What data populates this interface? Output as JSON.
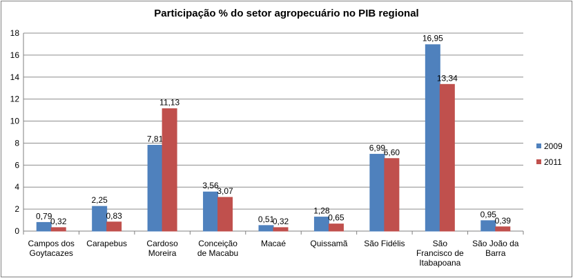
{
  "chart_data": {
    "type": "bar",
    "title": "Participação % do setor agropecuário no PIB regional",
    "categories": [
      [
        "Campos dos",
        "Goytacazes"
      ],
      [
        "Carapebus"
      ],
      [
        "Cardoso",
        "Moreira"
      ],
      [
        "Conceição",
        "de Macabu"
      ],
      [
        "Macaé"
      ],
      [
        "Quissamã"
      ],
      [
        "São Fidélis"
      ],
      [
        "São",
        "Francisco de",
        "Itabapoana"
      ],
      [
        "São João da",
        "Barra"
      ]
    ],
    "series": [
      {
        "name": "2009",
        "color": "#4f81bd",
        "values": [
          0.79,
          2.25,
          7.81,
          3.56,
          0.51,
          1.28,
          6.99,
          16.95,
          0.95
        ],
        "labels": [
          "0,79",
          "2,25",
          "7,81",
          "3,56",
          "0,51",
          "1,28",
          "6,99",
          "16,95",
          "0,95"
        ]
      },
      {
        "name": "2011",
        "color": "#c0504d",
        "values": [
          0.32,
          0.83,
          11.13,
          3.07,
          0.32,
          0.65,
          6.6,
          13.34,
          0.39
        ],
        "labels": [
          "0,32",
          "0,83",
          "11,13",
          "3,07",
          "0,32",
          "0,65",
          "6,60",
          "13,34",
          "0,39"
        ]
      }
    ],
    "ylim": [
      0,
      18
    ],
    "yticks": [
      0,
      2,
      4,
      6,
      8,
      10,
      12,
      14,
      16,
      18
    ],
    "grid": true,
    "legend_position": "right"
  }
}
